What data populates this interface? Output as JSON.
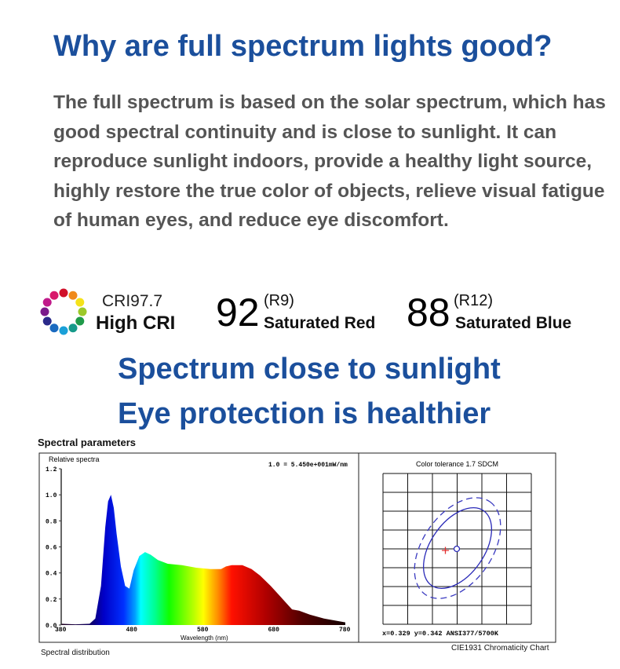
{
  "header": {
    "title": "Why are full spectrum lights good?"
  },
  "intro": "The full spectrum is based on the solar spectrum, which has good spectral continuity and is close to sunlight. It can reproduce sunlight indoors, provide a healthy light source, highly restore the true color of objects, relieve visual fatigue of human eyes, and reduce eye discomfort.",
  "stats": {
    "cri": {
      "value": "CRI97.7",
      "label": "High CRI",
      "icon": "color-wheel-icon"
    },
    "r9": {
      "value": "92",
      "code": "(R9)",
      "label": "Saturated Red"
    },
    "r12": {
      "value": "88",
      "code": "(R12)",
      "label": "Saturated Blue"
    }
  },
  "headlines": [
    "Spectrum close to sunlight",
    "Eye protection is healthier"
  ],
  "colors": {
    "brand_blue": "#1b4f9c",
    "body_gray": "#555555",
    "ellipse_blue": "#2a2ab8",
    "marker_red": "#e03030"
  },
  "spectral": {
    "section_title": "Spectral parameters",
    "caption": "Spectral distribution",
    "scale_note": "1.0 = 5.450e+001mW/nm"
  },
  "chromaticity": {
    "title": "Color tolerance 1.7 SDCM",
    "readout": "x=0.329 y=0.342 ANSI377/5700K",
    "caption": "CIE1931 Chromaticity Chart"
  },
  "chart_data": {
    "type": "area",
    "ylabel": "Relative spectra",
    "xlabel": "Wavelength (nm)",
    "xlim": [
      380,
      780
    ],
    "ylim": [
      0,
      1.2
    ],
    "xticks": [
      "380",
      "480",
      "580",
      "680",
      "780"
    ],
    "yticks": [
      "0.0",
      "0.2",
      "0.4",
      "0.6",
      "0.8",
      "1.0",
      "1.2"
    ],
    "x": [
      380,
      400,
      420,
      428,
      436,
      442,
      446,
      450,
      454,
      458,
      464,
      470,
      476,
      482,
      490,
      498,
      506,
      516,
      530,
      550,
      570,
      590,
      605,
      612,
      620,
      635,
      648,
      660,
      675,
      690,
      705,
      715,
      730,
      750,
      770,
      780
    ],
    "y": [
      0.01,
      0.005,
      0.01,
      0.05,
      0.3,
      0.75,
      0.95,
      1.0,
      0.9,
      0.7,
      0.45,
      0.3,
      0.28,
      0.42,
      0.53,
      0.56,
      0.54,
      0.5,
      0.47,
      0.46,
      0.44,
      0.43,
      0.43,
      0.45,
      0.46,
      0.46,
      0.43,
      0.38,
      0.3,
      0.21,
      0.12,
      0.11,
      0.08,
      0.05,
      0.03,
      0.02
    ]
  }
}
